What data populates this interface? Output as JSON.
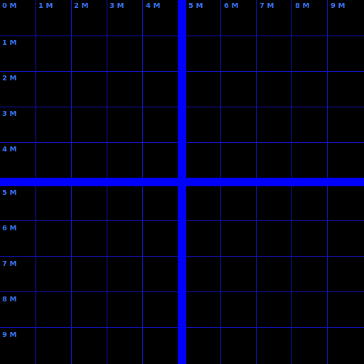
{
  "grid": {
    "background": "#000000",
    "line_color": "#1414c8",
    "axis_color": "#0000ff",
    "label_color": "#3c78ff",
    "top_labels": [
      "0 M",
      "1 M",
      "2 M",
      "3 M",
      "4 M",
      "5 M",
      "6 M",
      "7 M",
      "8 M",
      "9 M"
    ],
    "left_labels": [
      "1 M",
      "2 M",
      "3 M",
      "4 M",
      "5 M",
      "6 M",
      "7 M",
      "8 M",
      "9 M"
    ]
  }
}
